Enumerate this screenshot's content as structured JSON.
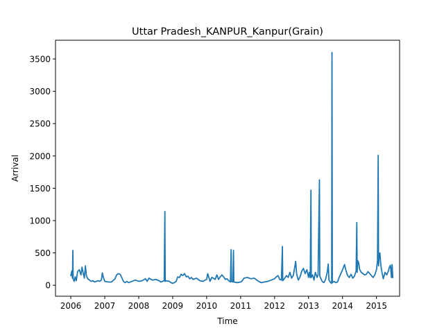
{
  "chart_data": {
    "type": "line",
    "title": "Uttar Pradesh_KANPUR_Kanpur(Grain)",
    "xlabel": "Time",
    "ylabel": "Arrival",
    "xlim": [
      2005.55,
      2015.68
    ],
    "ylim": [
      -170,
      3790
    ],
    "x_ticks": [
      2006,
      2007,
      2008,
      2009,
      2010,
      2011,
      2012,
      2013,
      2014,
      2015
    ],
    "x_tick_labels": [
      "2006",
      "2007",
      "2008",
      "2009",
      "2010",
      "2011",
      "2012",
      "2013",
      "2014",
      "2015"
    ],
    "y_ticks": [
      0,
      500,
      1000,
      1500,
      2000,
      2500,
      3000,
      3500
    ],
    "y_tick_labels": [
      "0",
      "500",
      "1000",
      "1500",
      "2000",
      "2500",
      "3000",
      "3500"
    ],
    "grid": false,
    "legend": "none",
    "series": [
      {
        "color": "#1f77b4",
        "points": [
          [
            2006.0,
            140
          ],
          [
            2006.03,
            220
          ],
          [
            2006.05,
            110
          ],
          [
            2006.06,
            540
          ],
          [
            2006.07,
            100
          ],
          [
            2006.1,
            60
          ],
          [
            2006.13,
            130
          ],
          [
            2006.16,
            70
          ],
          [
            2006.2,
            210
          ],
          [
            2006.25,
            240
          ],
          [
            2006.3,
            160
          ],
          [
            2006.33,
            280
          ],
          [
            2006.36,
            200
          ],
          [
            2006.4,
            110
          ],
          [
            2006.43,
            300
          ],
          [
            2006.46,
            150
          ],
          [
            2006.5,
            100
          ],
          [
            2006.55,
            80
          ],
          [
            2006.6,
            60
          ],
          [
            2006.65,
            70
          ],
          [
            2006.7,
            50
          ],
          [
            2006.75,
            60
          ],
          [
            2006.8,
            70
          ],
          [
            2006.85,
            60
          ],
          [
            2006.9,
            80
          ],
          [
            2006.93,
            190
          ],
          [
            2006.96,
            120
          ],
          [
            2007.0,
            60
          ],
          [
            2007.1,
            50
          ],
          [
            2007.2,
            50
          ],
          [
            2007.3,
            100
          ],
          [
            2007.35,
            160
          ],
          [
            2007.4,
            180
          ],
          [
            2007.45,
            170
          ],
          [
            2007.5,
            120
          ],
          [
            2007.55,
            60
          ],
          [
            2007.6,
            40
          ],
          [
            2007.65,
            60
          ],
          [
            2007.7,
            40
          ],
          [
            2007.8,
            60
          ],
          [
            2007.9,
            80
          ],
          [
            2008.0,
            60
          ],
          [
            2008.1,
            70
          ],
          [
            2008.2,
            100
          ],
          [
            2008.25,
            60
          ],
          [
            2008.3,
            110
          ],
          [
            2008.4,
            80
          ],
          [
            2008.5,
            90
          ],
          [
            2008.6,
            70
          ],
          [
            2008.65,
            50
          ],
          [
            2008.7,
            60
          ],
          [
            2008.75,
            70
          ],
          [
            2008.77,
            1140
          ],
          [
            2008.78,
            60
          ],
          [
            2008.8,
            70
          ],
          [
            2008.9,
            60
          ],
          [
            2008.95,
            40
          ],
          [
            2009.0,
            30
          ],
          [
            2009.05,
            40
          ],
          [
            2009.1,
            60
          ],
          [
            2009.15,
            130
          ],
          [
            2009.2,
            120
          ],
          [
            2009.25,
            170
          ],
          [
            2009.3,
            150
          ],
          [
            2009.35,
            180
          ],
          [
            2009.4,
            130
          ],
          [
            2009.45,
            140
          ],
          [
            2009.5,
            100
          ],
          [
            2009.55,
            120
          ],
          [
            2009.6,
            90
          ],
          [
            2009.7,
            110
          ],
          [
            2009.8,
            70
          ],
          [
            2009.9,
            60
          ],
          [
            2009.95,
            80
          ],
          [
            2010.0,
            90
          ],
          [
            2010.03,
            180
          ],
          [
            2010.06,
            130
          ],
          [
            2010.1,
            60
          ],
          [
            2010.15,
            120
          ],
          [
            2010.2,
            110
          ],
          [
            2010.25,
            90
          ],
          [
            2010.3,
            160
          ],
          [
            2010.35,
            90
          ],
          [
            2010.4,
            130
          ],
          [
            2010.45,
            160
          ],
          [
            2010.5,
            130
          ],
          [
            2010.55,
            90
          ],
          [
            2010.6,
            100
          ],
          [
            2010.65,
            70
          ],
          [
            2010.7,
            50
          ],
          [
            2010.72,
            550
          ],
          [
            2010.73,
            60
          ],
          [
            2010.77,
            50
          ],
          [
            2010.79,
            540
          ],
          [
            2010.8,
            50
          ],
          [
            2010.9,
            40
          ],
          [
            2011.0,
            50
          ],
          [
            2011.05,
            70
          ],
          [
            2011.1,
            110
          ],
          [
            2011.2,
            120
          ],
          [
            2011.3,
            100
          ],
          [
            2011.4,
            110
          ],
          [
            2011.5,
            70
          ],
          [
            2011.6,
            40
          ],
          [
            2011.7,
            50
          ],
          [
            2011.8,
            60
          ],
          [
            2011.9,
            80
          ],
          [
            2012.0,
            100
          ],
          [
            2012.05,
            130
          ],
          [
            2012.1,
            150
          ],
          [
            2012.15,
            90
          ],
          [
            2012.2,
            80
          ],
          [
            2012.23,
            600
          ],
          [
            2012.24,
            70
          ],
          [
            2012.3,
            110
          ],
          [
            2012.35,
            150
          ],
          [
            2012.4,
            120
          ],
          [
            2012.45,
            200
          ],
          [
            2012.5,
            110
          ],
          [
            2012.55,
            150
          ],
          [
            2012.6,
            300
          ],
          [
            2012.62,
            370
          ],
          [
            2012.65,
            170
          ],
          [
            2012.7,
            80
          ],
          [
            2012.75,
            130
          ],
          [
            2012.8,
            220
          ],
          [
            2012.85,
            260
          ],
          [
            2012.9,
            180
          ],
          [
            2012.95,
            240
          ],
          [
            2013.0,
            120
          ],
          [
            2013.02,
            200
          ],
          [
            2013.05,
            120
          ],
          [
            2013.07,
            1470
          ],
          [
            2013.08,
            120
          ],
          [
            2013.12,
            160
          ],
          [
            2013.16,
            80
          ],
          [
            2013.2,
            200
          ],
          [
            2013.25,
            120
          ],
          [
            2013.28,
            160
          ],
          [
            2013.32,
            1630
          ],
          [
            2013.33,
            140
          ],
          [
            2013.4,
            60
          ],
          [
            2013.45,
            40
          ],
          [
            2013.5,
            90
          ],
          [
            2013.55,
            200
          ],
          [
            2013.58,
            330
          ],
          [
            2013.6,
            80
          ],
          [
            2013.65,
            40
          ],
          [
            2013.68,
            30
          ],
          [
            2013.69,
            3600
          ],
          [
            2013.7,
            40
          ],
          [
            2013.75,
            60
          ],
          [
            2013.8,
            40
          ],
          [
            2013.85,
            50
          ],
          [
            2013.9,
            120
          ],
          [
            2013.95,
            180
          ],
          [
            2014.0,
            240
          ],
          [
            2014.03,
            280
          ],
          [
            2014.06,
            320
          ],
          [
            2014.1,
            230
          ],
          [
            2014.15,
            150
          ],
          [
            2014.2,
            120
          ],
          [
            2014.25,
            170
          ],
          [
            2014.3,
            110
          ],
          [
            2014.35,
            140
          ],
          [
            2014.4,
            220
          ],
          [
            2014.42,
            970
          ],
          [
            2014.43,
            200
          ],
          [
            2014.45,
            380
          ],
          [
            2014.48,
            340
          ],
          [
            2014.5,
            250
          ],
          [
            2014.55,
            200
          ],
          [
            2014.6,
            180
          ],
          [
            2014.65,
            160
          ],
          [
            2014.7,
            170
          ],
          [
            2014.75,
            210
          ],
          [
            2014.8,
            180
          ],
          [
            2014.85,
            150
          ],
          [
            2014.9,
            120
          ],
          [
            2014.95,
            160
          ],
          [
            2015.0,
            240
          ],
          [
            2015.03,
            380
          ],
          [
            2015.05,
            2010
          ],
          [
            2015.06,
            300
          ],
          [
            2015.08,
            450
          ],
          [
            2015.1,
            500
          ],
          [
            2015.13,
            300
          ],
          [
            2015.16,
            200
          ],
          [
            2015.2,
            100
          ],
          [
            2015.25,
            200
          ],
          [
            2015.3,
            160
          ],
          [
            2015.35,
            220
          ],
          [
            2015.38,
            280
          ],
          [
            2015.41,
            310
          ],
          [
            2015.44,
            120
          ],
          [
            2015.46,
            320
          ],
          [
            2015.48,
            110
          ]
        ]
      }
    ]
  }
}
